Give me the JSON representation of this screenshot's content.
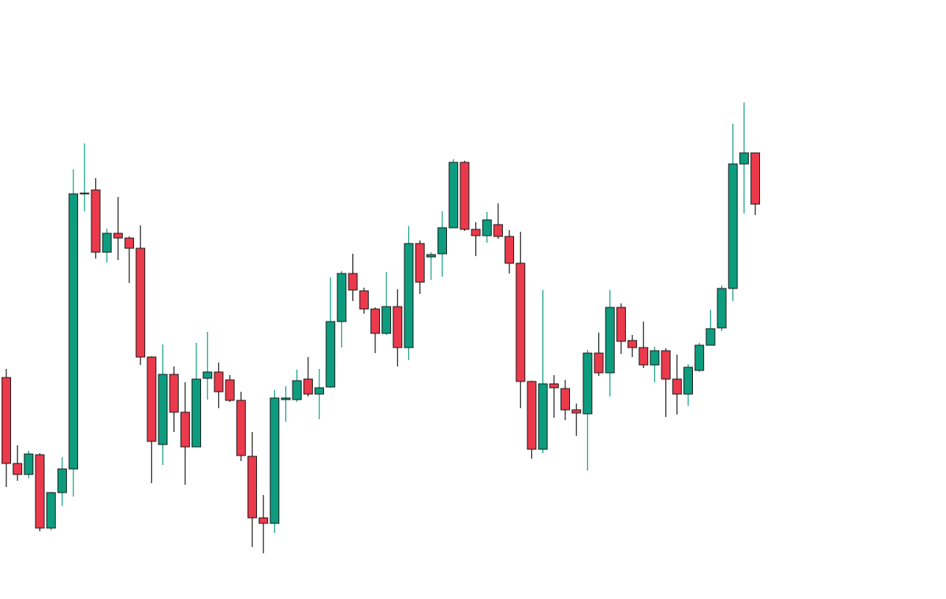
{
  "chart_data": {
    "type": "candlestick",
    "up_color": "#0e9c7f",
    "down_color": "#ea3a4c",
    "border_color": "#1a1a1a",
    "ylim": [
      0,
      760
    ],
    "open": [
      281,
      172,
      158,
      183,
      90,
      135,
      165,
      514,
      519,
      440,
      464,
      458,
      445,
      307,
      196,
      285,
      237,
      193,
      280,
      288,
      278,
      252,
      181,
      103,
      96,
      253,
      253,
      279,
      260,
      269,
      352,
      413,
      391,
      368,
      337,
      371,
      319,
      451,
      434,
      438,
      471,
      554,
      469,
      461,
      475,
      460,
      426,
      276,
      190,
      273,
      267,
      240,
      235,
      312,
      287,
      370,
      328,
      319,
      297,
      315,
      279,
      260,
      290,
      322,
      344,
      394,
      552,
      566
    ],
    "high": [
      292,
      195,
      188,
      185,
      136,
      180,
      545,
      578,
      534,
      470,
      510,
      460,
      474,
      308,
      323,
      295,
      275,
      325,
      339,
      300,
      284,
      263,
      212,
      132,
      265,
      270,
      291,
      307,
      292,
      408,
      416,
      438,
      395,
      370,
      415,
      393,
      473,
      455,
      440,
      492,
      558,
      556,
      478,
      491,
      502,
      468,
      466,
      277,
      392,
      284,
      278,
      248,
      316,
      338,
      392,
      375,
      335,
      352,
      320,
      318,
      310,
      298,
      325,
      367,
      398,
      603,
      630,
      566
    ],
    "low": [
      142,
      150,
      153,
      86,
      87,
      118,
      130,
      492,
      432,
      427,
      430,
      401,
      297,
      147,
      170,
      212,
      145,
      193,
      253,
      242,
      250,
      175,
      66,
      58,
      84,
      225,
      250,
      257,
      228,
      268,
      319,
      378,
      362,
      312,
      335,
      295,
      303,
      387,
      405,
      409,
      471,
      467,
      435,
      452,
      457,
      413,
      242,
      178,
      185,
      230,
      227,
      207,
      163,
      283,
      257,
      311,
      307,
      293,
      275,
      231,
      234,
      245,
      288,
      322,
      340,
      378,
      489,
      487
    ],
    "close": [
      172,
      158,
      184,
      90,
      135,
      165,
      514,
      515,
      440,
      464,
      458,
      445,
      307,
      200,
      285,
      237,
      193,
      279,
      288,
      263,
      252,
      182,
      103,
      96,
      255,
      255,
      277,
      260,
      268,
      352,
      413,
      392,
      368,
      337,
      371,
      319,
      451,
      402,
      437,
      471,
      554,
      469,
      461,
      481,
      460,
      426,
      276,
      190,
      273,
      268,
      240,
      236,
      312,
      287,
      370,
      327,
      319,
      297,
      315,
      279,
      260,
      294,
      322,
      343,
      394,
      552,
      566,
      501
    ]
  }
}
